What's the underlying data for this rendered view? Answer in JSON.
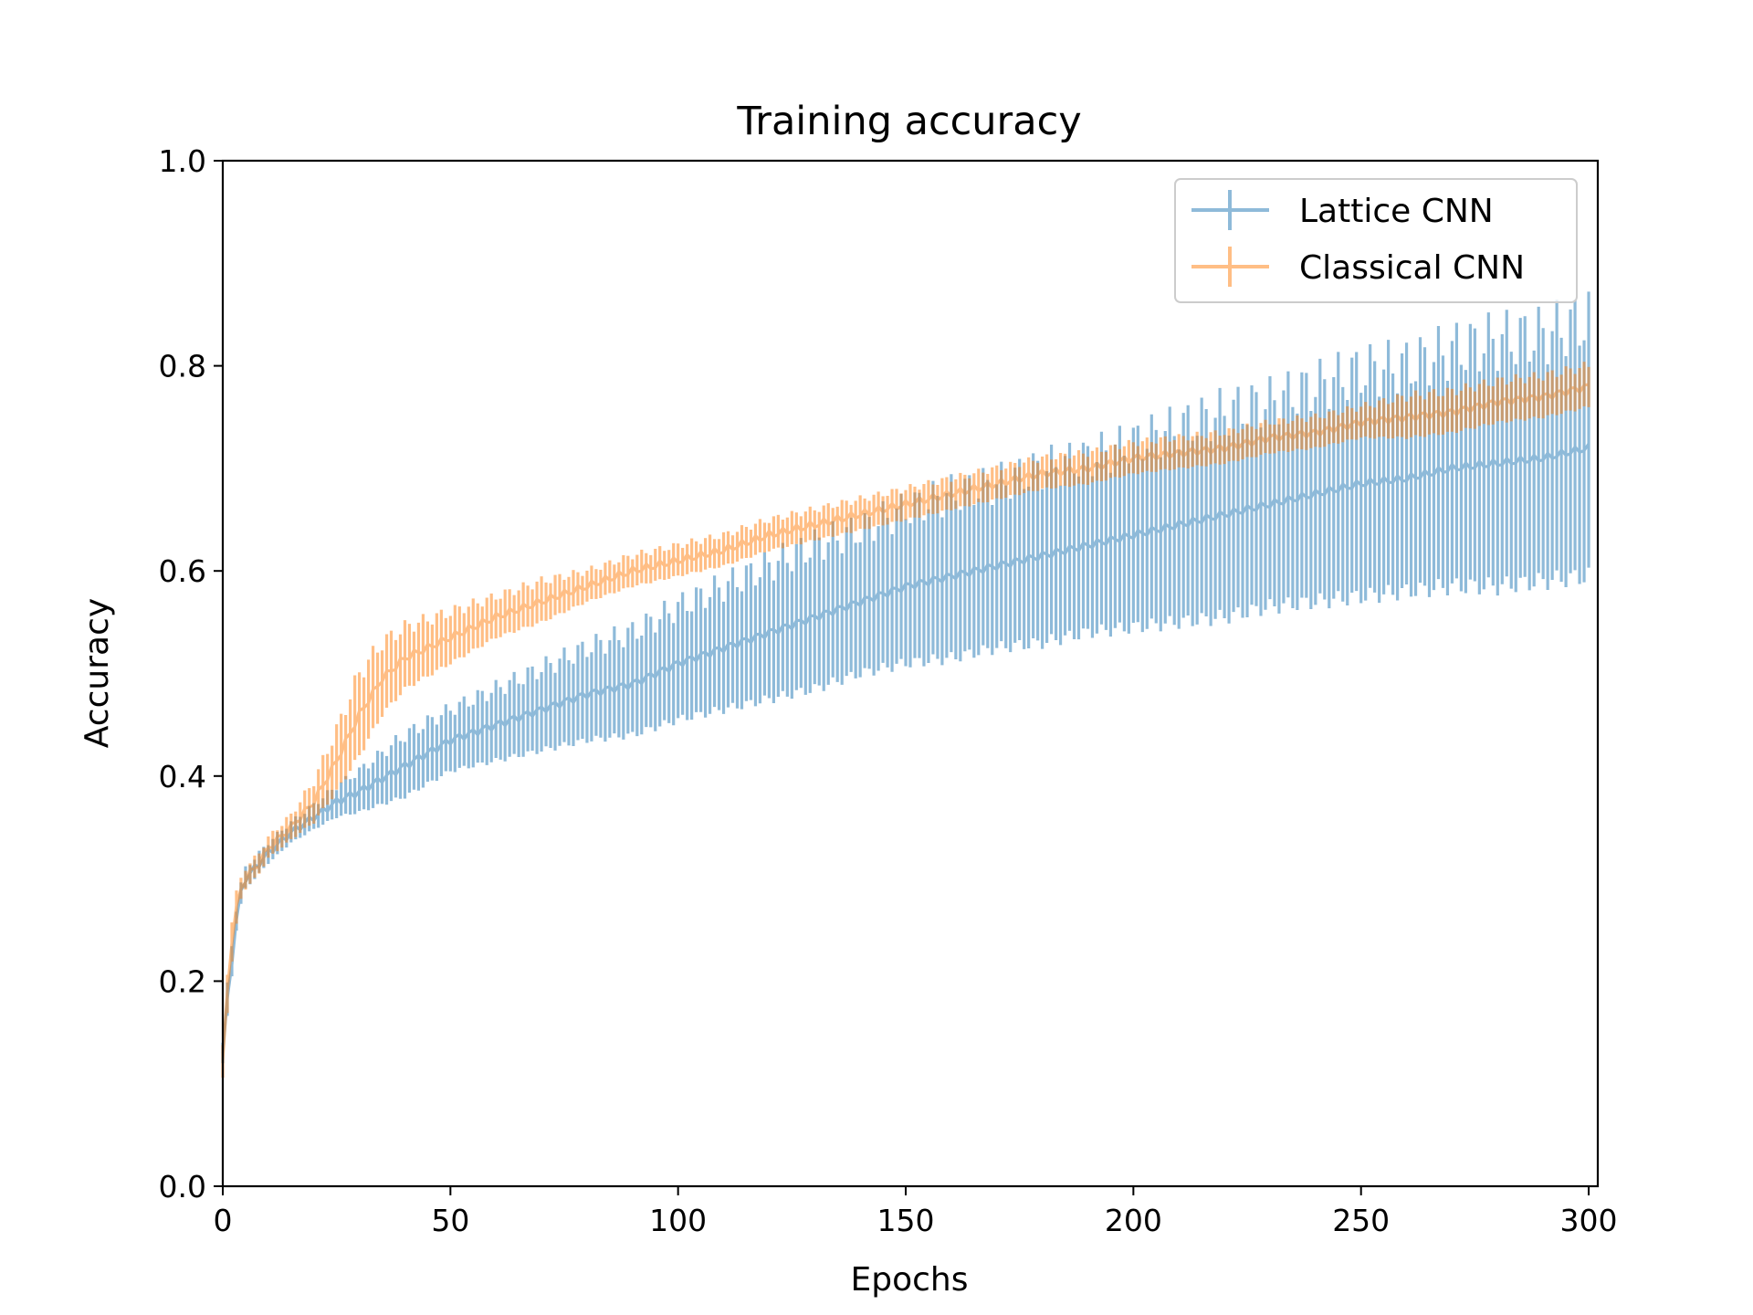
{
  "chart_data": {
    "type": "line",
    "title": "Training accuracy",
    "xlabel": "Epochs",
    "ylabel": "Accuracy",
    "xlim": [
      0,
      302
    ],
    "ylim": [
      0.0,
      1.0
    ],
    "x_ticks": [
      "0",
      "50",
      "100",
      "150",
      "200",
      "250",
      "300"
    ],
    "y_ticks": [
      "0.0",
      "0.2",
      "0.4",
      "0.6",
      "0.8",
      "1.0"
    ],
    "grid": false,
    "legend_position": "upper right",
    "error_bars": true,
    "series": [
      {
        "name": "Lattice CNN",
        "color": "#1f77b4",
        "alpha": 0.5,
        "x": [
          0,
          1,
          2,
          3,
          4,
          5,
          8,
          10,
          15,
          20,
          25,
          30,
          40,
          50,
          60,
          70,
          80,
          90,
          100,
          110,
          120,
          130,
          140,
          150,
          160,
          170,
          180,
          190,
          200,
          210,
          220,
          230,
          240,
          250,
          260,
          270,
          280,
          290,
          300
        ],
        "y": [
          0.13,
          0.18,
          0.22,
          0.26,
          0.285,
          0.3,
          0.315,
          0.325,
          0.345,
          0.36,
          0.375,
          0.385,
          0.41,
          0.435,
          0.45,
          0.465,
          0.48,
          0.49,
          0.51,
          0.525,
          0.54,
          0.555,
          0.57,
          0.585,
          0.595,
          0.605,
          0.615,
          0.625,
          0.635,
          0.645,
          0.655,
          0.665,
          0.675,
          0.685,
          0.69,
          0.7,
          0.705,
          0.71,
          0.72
        ],
        "err": [
          0.01,
          0.015,
          0.015,
          0.01,
          0.01,
          0.01,
          0.01,
          0.01,
          0.01,
          0.012,
          0.015,
          0.02,
          0.03,
          0.03,
          0.035,
          0.04,
          0.045,
          0.05,
          0.055,
          0.06,
          0.065,
          0.07,
          0.07,
          0.075,
          0.08,
          0.08,
          0.085,
          0.085,
          0.09,
          0.095,
          0.1,
          0.1,
          0.105,
          0.11,
          0.11,
          0.115,
          0.12,
          0.12,
          0.125
        ]
      },
      {
        "name": "Classical CNN",
        "color": "#ff7f0e",
        "alpha": 0.5,
        "x": [
          0,
          1,
          2,
          3,
          4,
          5,
          8,
          10,
          15,
          20,
          25,
          30,
          35,
          40,
          50,
          60,
          70,
          80,
          90,
          100,
          110,
          120,
          130,
          140,
          150,
          160,
          170,
          180,
          190,
          200,
          210,
          220,
          230,
          240,
          250,
          260,
          270,
          280,
          290,
          300
        ],
        "y": [
          0.12,
          0.19,
          0.24,
          0.27,
          0.29,
          0.3,
          0.315,
          0.33,
          0.35,
          0.375,
          0.415,
          0.46,
          0.495,
          0.515,
          0.535,
          0.555,
          0.57,
          0.585,
          0.6,
          0.61,
          0.62,
          0.635,
          0.645,
          0.655,
          0.665,
          0.675,
          0.685,
          0.695,
          0.7,
          0.71,
          0.715,
          0.72,
          0.73,
          0.735,
          0.745,
          0.75,
          0.755,
          0.765,
          0.77,
          0.78
        ],
        "err": [
          0.015,
          0.02,
          0.02,
          0.015,
          0.01,
          0.01,
          0.01,
          0.01,
          0.012,
          0.02,
          0.03,
          0.04,
          0.035,
          0.03,
          0.025,
          0.02,
          0.02,
          0.015,
          0.015,
          0.015,
          0.015,
          0.015,
          0.015,
          0.015,
          0.015,
          0.015,
          0.015,
          0.015,
          0.015,
          0.015,
          0.015,
          0.015,
          0.015,
          0.015,
          0.015,
          0.02,
          0.02,
          0.02,
          0.02,
          0.02
        ]
      }
    ]
  }
}
